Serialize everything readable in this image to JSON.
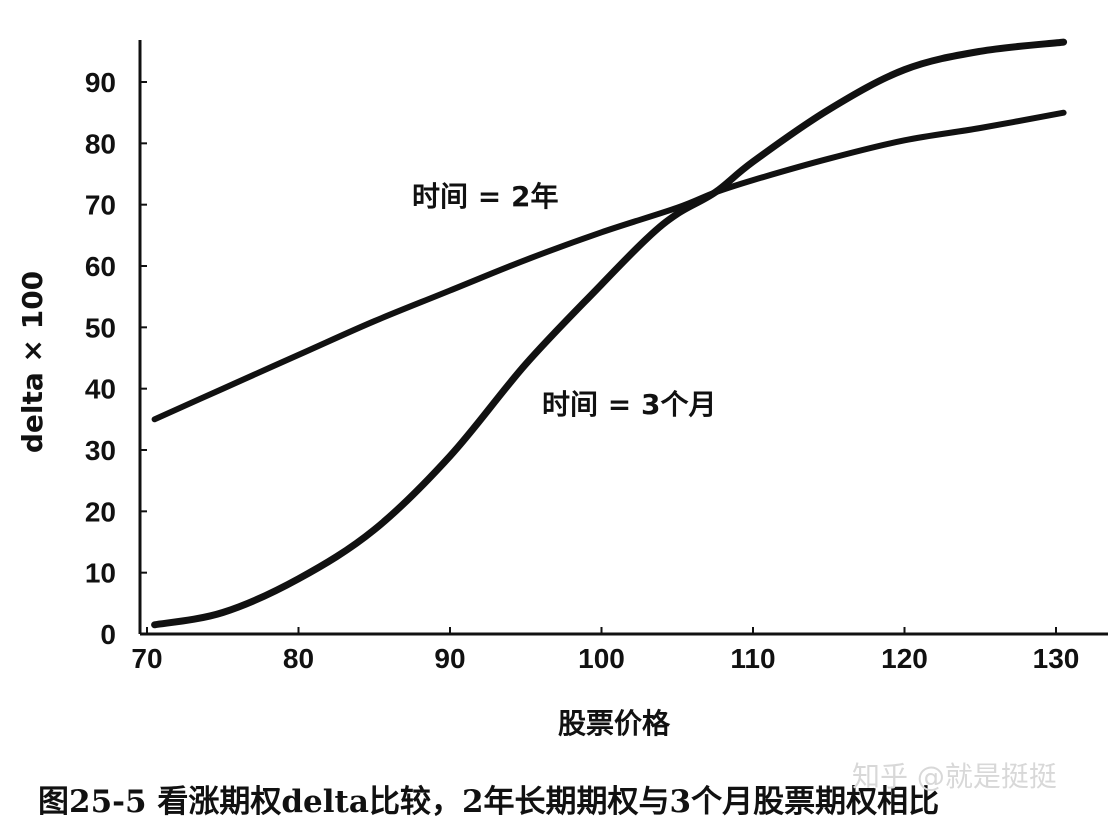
{
  "chart_data": {
    "type": "line",
    "title": "图25-5 看涨期权delta比较，2年长期期权与3个月股票期权相比",
    "xlabel": "股票价格",
    "ylabel": "delta × 100",
    "xlim": [
      70,
      132
    ],
    "ylim": [
      0,
      98
    ],
    "xticks": [
      70,
      80,
      90,
      100,
      110,
      120,
      130
    ],
    "yticks": [
      0,
      10,
      20,
      30,
      40,
      50,
      60,
      70,
      80,
      90
    ],
    "grid": false,
    "legend": "none",
    "series": [
      {
        "name": "时间 = 2年",
        "x": [
          70.5,
          75,
          80,
          85,
          90,
          95,
          100,
          105,
          107.5,
          110,
          115,
          120,
          125,
          130.5
        ],
        "y": [
          35,
          40,
          45.5,
          51,
          56,
          61,
          65.5,
          69.5,
          72,
          74,
          77.5,
          80.5,
          82.5,
          85
        ]
      },
      {
        "name": "时间 = 3个月",
        "x": [
          70.5,
          75,
          80,
          85,
          90,
          95,
          100,
          103,
          105,
          107.5,
          110,
          115,
          120,
          125,
          130.5
        ],
        "y": [
          1.5,
          3.5,
          9,
          17,
          29,
          44,
          57,
          64.5,
          68.5,
          72,
          77,
          85.5,
          92,
          95,
          96.5
        ]
      }
    ],
    "annotations": [
      {
        "text": "时间 = 2年",
        "series": 0
      },
      {
        "text": "时间 = 3个月",
        "series": 1
      }
    ]
  },
  "watermark": "知乎 @就是挺挺"
}
